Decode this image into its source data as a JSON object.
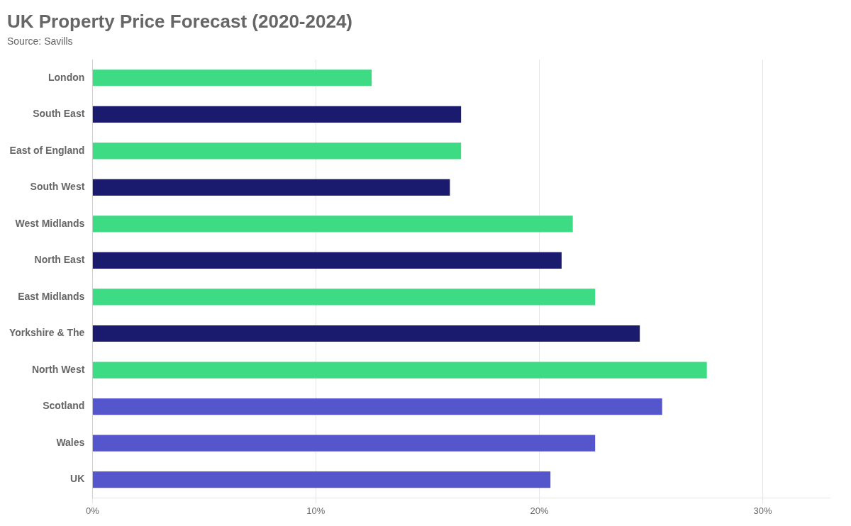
{
  "chart_data": {
    "type": "bar",
    "orientation": "horizontal",
    "title": "UK Property Price Forecast (2020-2024)",
    "subtitle": "Source: Savills",
    "categories": [
      "London",
      "South East",
      "East of England",
      "South West",
      "West Midlands",
      "North East",
      "East Midlands",
      "Yorkshire & The",
      "North West",
      "Scotland",
      "Wales",
      "UK"
    ],
    "values": [
      12.5,
      16.5,
      16.5,
      16.0,
      21.5,
      21.0,
      22.5,
      24.5,
      27.5,
      25.5,
      22.5,
      20.5
    ],
    "colors": [
      "#3ddb84",
      "#1a1a6e",
      "#3ddb84",
      "#1a1a6e",
      "#3ddb84",
      "#1a1a6e",
      "#3ddb84",
      "#1a1a6e",
      "#3ddb84",
      "#5555cc",
      "#5555cc",
      "#5555cc"
    ],
    "xlim": [
      0,
      33
    ],
    "xticks": [
      {
        "value": 0,
        "label": "0%"
      },
      {
        "value": 10,
        "label": "10%"
      },
      {
        "value": 20,
        "label": "20%"
      },
      {
        "value": 30,
        "label": "30%"
      }
    ],
    "grid": true
  }
}
